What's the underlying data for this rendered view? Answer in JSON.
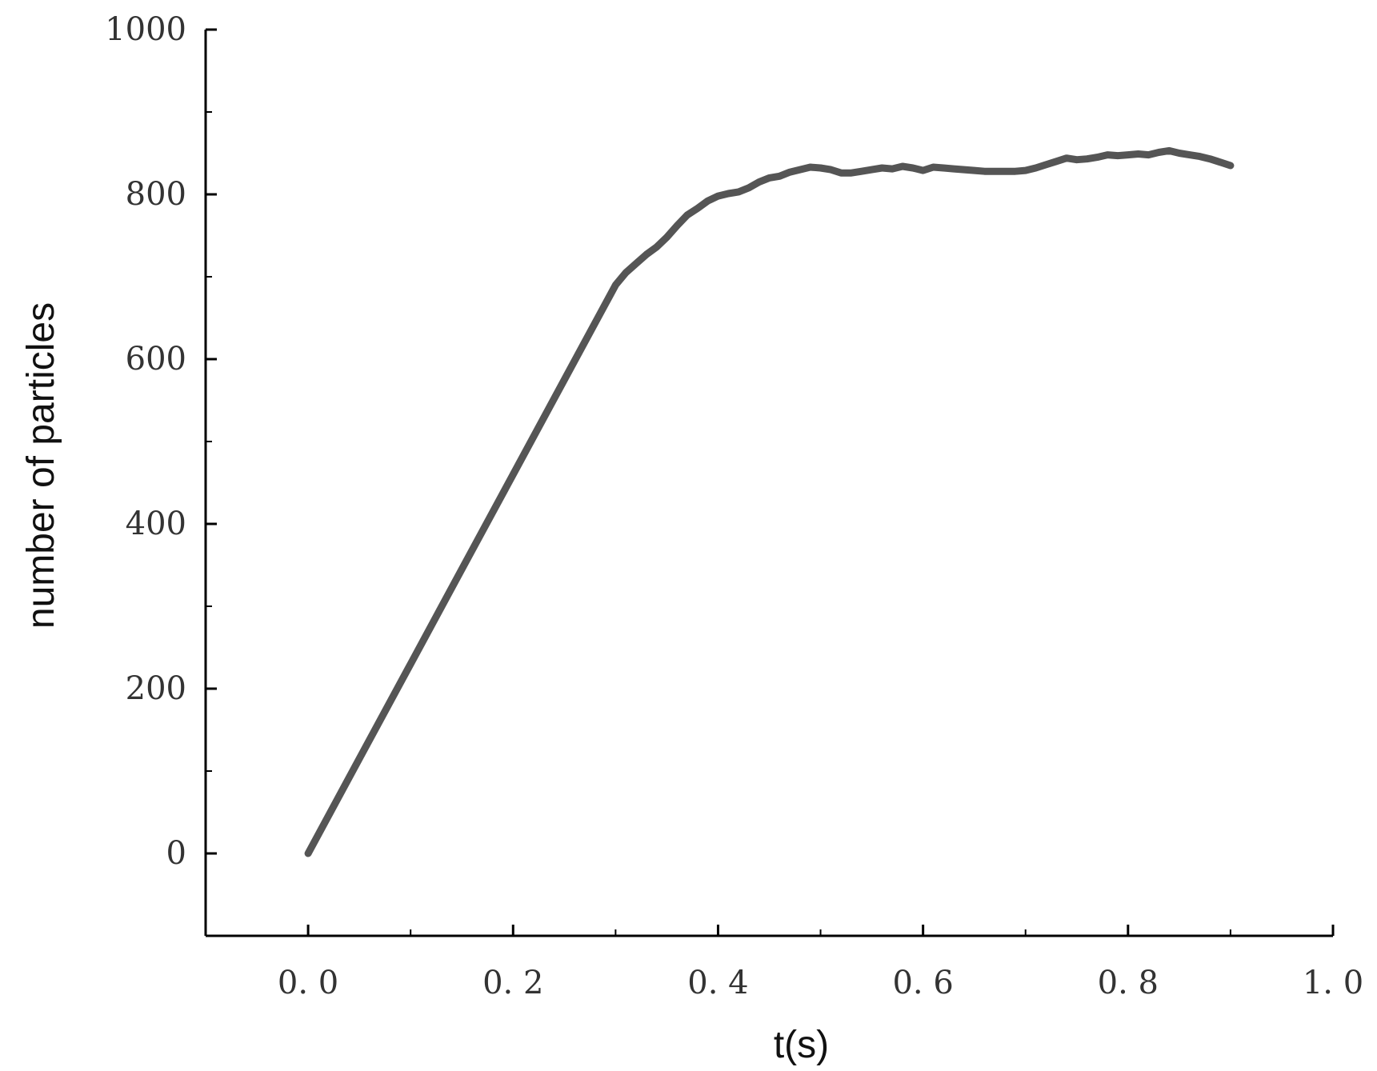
{
  "chart_data": {
    "type": "line",
    "title": "",
    "xlabel": "t(s)",
    "ylabel": "number of particles",
    "xlim": [
      -0.1,
      1.0
    ],
    "ylim": [
      -100,
      1000
    ],
    "x_ticks": [
      0.0,
      0.2,
      0.4,
      0.6,
      0.8,
      1.0
    ],
    "x_tick_labels": [
      "0. 0",
      "0. 2",
      "0. 4",
      "0. 6",
      "0. 8",
      "1. 0"
    ],
    "y_ticks": [
      0,
      200,
      400,
      600,
      800,
      1000
    ],
    "y_tick_labels": [
      "0",
      "200",
      "400",
      "600",
      "800",
      "1000"
    ],
    "grid": false,
    "line_color": "#555555",
    "series": [
      {
        "x": [
          0.0,
          0.05,
          0.1,
          0.15,
          0.2,
          0.25,
          0.3,
          0.31,
          0.32,
          0.33,
          0.34,
          0.35,
          0.36,
          0.37,
          0.38,
          0.39,
          0.4,
          0.41,
          0.42,
          0.43,
          0.44,
          0.45,
          0.46,
          0.47,
          0.48,
          0.49,
          0.5,
          0.51,
          0.52,
          0.53,
          0.54,
          0.55,
          0.56,
          0.57,
          0.58,
          0.59,
          0.6,
          0.61,
          0.62,
          0.63,
          0.64,
          0.65,
          0.66,
          0.67,
          0.68,
          0.69,
          0.7,
          0.71,
          0.72,
          0.73,
          0.74,
          0.75,
          0.76,
          0.77,
          0.78,
          0.79,
          0.8,
          0.81,
          0.82,
          0.83,
          0.84,
          0.85,
          0.86,
          0.87,
          0.88,
          0.89,
          0.9
        ],
        "y": [
          0,
          115,
          230,
          345,
          460,
          575,
          690,
          705,
          716,
          727,
          736,
          748,
          762,
          775,
          783,
          792,
          798,
          801,
          803,
          808,
          815,
          820,
          822,
          827,
          830,
          833,
          832,
          830,
          826,
          826,
          828,
          830,
          832,
          831,
          834,
          832,
          829,
          833,
          832,
          831,
          830,
          829,
          828,
          828,
          828,
          828,
          829,
          832,
          836,
          840,
          844,
          842,
          843,
          845,
          848,
          847,
          848,
          849,
          848,
          851,
          853,
          850,
          848,
          846,
          843,
          839,
          835
        ]
      }
    ]
  }
}
